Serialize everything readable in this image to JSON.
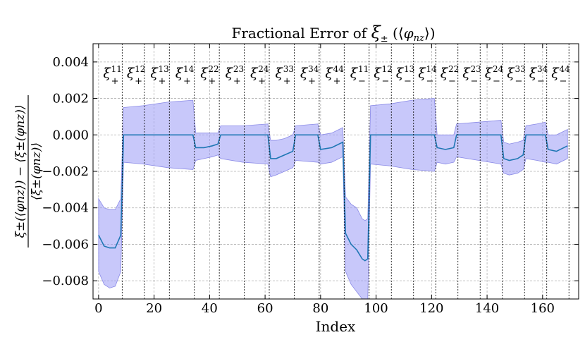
{
  "chart_data": {
    "type": "line",
    "title": "Fractional Error of ξ± (⟨φnz⟩)",
    "title_parts": {
      "prefix": "Fractional Error of ",
      "xi": "ξ",
      "pm": "±",
      "open": " (⟨",
      "phi": "φ",
      "sub": "nz",
      "close": "⟩)"
    },
    "xlabel": "Index",
    "ylabel": {
      "numerator": "ξ±(⟨φnz⟩) − ⟨ξ±(φnz)⟩",
      "denominator": "⟨ξ±(φnz)⟩"
    },
    "xlim": [
      -2,
      173
    ],
    "ylim": [
      -0.009,
      0.005
    ],
    "xticks": [
      0,
      20,
      40,
      60,
      80,
      100,
      120,
      140,
      160
    ],
    "yticks": [
      -0.008,
      -0.006,
      -0.004,
      -0.002,
      0.0,
      0.002,
      0.004
    ],
    "ytick_labels": [
      "−0.008",
      "−0.006",
      "−0.004",
      "−0.002",
      "0.000",
      "0.002",
      "0.004"
    ],
    "grid": true,
    "colors": {
      "line": "#1f77b4",
      "band": "#9b9bf5",
      "band_edge": "#8a8ae6",
      "grid": "#b0b0b0"
    },
    "section_boundaries": [
      8.5,
      16.5,
      25.5,
      34.5,
      43.5,
      52.5,
      61.5,
      70.5,
      79.5,
      88.5,
      97.5,
      105.5,
      113.5,
      121.5,
      129.5,
      137.5,
      145.5,
      153.5,
      161.5,
      169.5
    ],
    "section_labels": [
      {
        "pm": "+",
        "ij": "11"
      },
      {
        "pm": "+",
        "ij": "12"
      },
      {
        "pm": "+",
        "ij": "13"
      },
      {
        "pm": "+",
        "ij": "14"
      },
      {
        "pm": "+",
        "ij": "22"
      },
      {
        "pm": "+",
        "ij": "23"
      },
      {
        "pm": "+",
        "ij": "24"
      },
      {
        "pm": "+",
        "ij": "33"
      },
      {
        "pm": "+",
        "ij": "34"
      },
      {
        "pm": "+",
        "ij": "44"
      },
      {
        "pm": "−",
        "ij": "11"
      },
      {
        "pm": "−",
        "ij": "12"
      },
      {
        "pm": "−",
        "ij": "13"
      },
      {
        "pm": "−",
        "ij": "14"
      },
      {
        "pm": "−",
        "ij": "22"
      },
      {
        "pm": "−",
        "ij": "23"
      },
      {
        "pm": "−",
        "ij": "24"
      },
      {
        "pm": "−",
        "ij": "33"
      },
      {
        "pm": "−",
        "ij": "34"
      },
      {
        "pm": "−",
        "ij": "44"
      }
    ],
    "series": [
      {
        "x": [
          0,
          2,
          4,
          6,
          8,
          9,
          16,
          25,
          34,
          35,
          38,
          41,
          43,
          44,
          52,
          61,
          62,
          64,
          67,
          70,
          71,
          79,
          80,
          84,
          88,
          89,
          91,
          93,
          95,
          96,
          97,
          98,
          105,
          113,
          121,
          122,
          125,
          128,
          129,
          137,
          145,
          146,
          148,
          151,
          153,
          154,
          158,
          161,
          162,
          165,
          169
        ],
        "y": [
          -0.0055,
          -0.0061,
          -0.0062,
          -0.0062,
          -0.0055,
          0.0,
          0.0,
          0.0,
          0.0,
          -0.0007,
          -0.0007,
          -0.0006,
          -0.0005,
          0.0,
          0.0,
          0.0,
          -0.0013,
          -0.0013,
          -0.0011,
          -0.0009,
          0.0,
          0.0,
          -0.0008,
          -0.0007,
          -0.0004,
          -0.0054,
          -0.006,
          -0.0063,
          -0.0068,
          -0.0069,
          -0.0068,
          0.0,
          0.0,
          0.0,
          0.0,
          -0.0007,
          -0.0008,
          -0.0007,
          0.0,
          0.0,
          0.0,
          -0.0013,
          -0.0014,
          -0.0013,
          -0.0011,
          0.0,
          0.0,
          0.0,
          -0.0008,
          -0.0009,
          -0.0006
        ],
        "lower": [
          -0.0075,
          -0.0082,
          -0.0084,
          -0.0083,
          -0.0075,
          -0.0015,
          -0.0016,
          -0.0018,
          -0.0019,
          -0.0014,
          -0.0013,
          -0.0012,
          -0.0011,
          -0.0013,
          -0.0015,
          -0.0016,
          -0.0023,
          -0.0022,
          -0.002,
          -0.0018,
          -0.0014,
          -0.0015,
          -0.0016,
          -0.0015,
          -0.0012,
          -0.0075,
          -0.0082,
          -0.0086,
          -0.009,
          -0.009,
          -0.009,
          -0.0016,
          -0.0017,
          -0.0019,
          -0.002,
          -0.0015,
          -0.0016,
          -0.0015,
          -0.0012,
          -0.0014,
          -0.0016,
          -0.0021,
          -0.0022,
          -0.0021,
          -0.0019,
          -0.0013,
          -0.0014,
          -0.0015,
          -0.0015,
          -0.0016,
          -0.0013
        ],
        "upper": [
          -0.0035,
          -0.004,
          -0.0041,
          -0.0041,
          -0.0035,
          0.0015,
          0.0016,
          0.0018,
          0.0019,
          0.0001,
          0.0001,
          0.0001,
          0.0001,
          0.0005,
          0.0005,
          0.0006,
          -0.0003,
          -0.0003,
          -0.0002,
          0.0,
          0.0005,
          0.0006,
          0.0,
          0.0001,
          0.0004,
          -0.0034,
          -0.0038,
          -0.004,
          -0.0046,
          -0.0047,
          -0.0046,
          0.0016,
          0.0017,
          0.0019,
          0.002,
          0.0,
          0.0,
          0.0,
          0.0006,
          0.0007,
          0.0008,
          -0.0004,
          -0.0005,
          -0.0004,
          -0.0003,
          0.0005,
          0.0006,
          0.0007,
          0.0,
          0.0,
          0.0003
        ]
      }
    ]
  }
}
